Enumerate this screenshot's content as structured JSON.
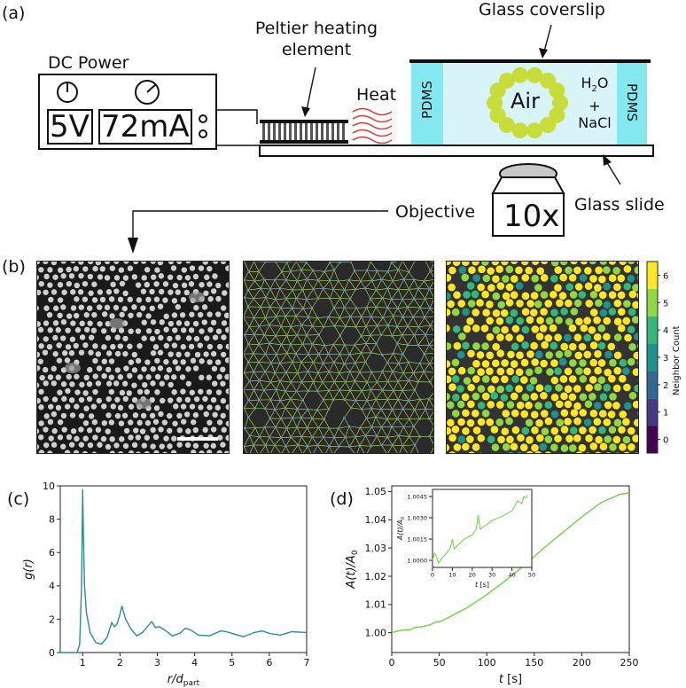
{
  "panel_labels": [
    "(a)",
    "(b)",
    "(c)",
    "(d)"
  ],
  "setup": {
    "power_title": "DC Power",
    "voltage": "5V",
    "current": "72mA",
    "peltier_label_line1": "Peltier heating",
    "peltier_label_line2": "element",
    "heat_label": "Heat",
    "coverslip_label": "Glass coverslip",
    "pdms_label": "PDMS",
    "air_label": "Air",
    "solution_line1": "H",
    "solution_sub": "2",
    "solution_line1_end": "O",
    "solution_line2": "+",
    "solution_line3": "NaCl",
    "objective_label": "Objective",
    "magnification": "10x",
    "glass_slide_label": "Glass slide",
    "colors": {
      "pdms": "#84e8f0",
      "water": "#d8f4f8",
      "particle": "#c8dc3a",
      "heat": "#d04040"
    }
  },
  "colorbar": {
    "label": "Neighbor Count",
    "ticks": [
      "0",
      "1",
      "2",
      "3",
      "4",
      "5",
      "6"
    ],
    "colors": [
      "#440154",
      "#443983",
      "#31688e",
      "#21918c",
      "#35b779",
      "#90d743",
      "#fde725"
    ]
  },
  "chart_data": [
    {
      "type": "line",
      "panel": "(c)",
      "xlabel": "r/d_part",
      "ylabel": "g(r)",
      "xlim": [
        0.4,
        7
      ],
      "ylim": [
        0,
        10
      ],
      "xticks": [
        "1",
        "2",
        "3",
        "4",
        "5",
        "6",
        "7"
      ],
      "yticks": [
        "0",
        "2",
        "4",
        "6",
        "8",
        "10"
      ],
      "color": "#2a8f8c",
      "x": [
        0.4,
        0.85,
        0.92,
        0.97,
        1.0,
        1.02,
        1.05,
        1.1,
        1.2,
        1.35,
        1.5,
        1.65,
        1.78,
        1.85,
        1.92,
        2.0,
        2.05,
        2.15,
        2.3,
        2.45,
        2.6,
        2.75,
        2.85,
        2.95,
        3.05,
        3.2,
        3.4,
        3.6,
        3.75,
        3.9,
        4.1,
        4.4,
        4.7,
        4.85,
        5.0,
        5.3,
        5.6,
        5.8,
        6.0,
        6.3,
        6.6,
        7.0
      ],
      "y": [
        0.0,
        0.0,
        0.5,
        4.0,
        9.8,
        7.0,
        4.0,
        2.4,
        1.2,
        0.6,
        0.5,
        0.9,
        1.8,
        1.55,
        1.7,
        2.3,
        2.8,
        2.0,
        1.4,
        1.0,
        1.2,
        1.6,
        1.85,
        1.5,
        1.55,
        1.35,
        1.0,
        1.15,
        1.45,
        1.35,
        1.05,
        1.0,
        1.3,
        1.25,
        1.15,
        0.95,
        1.2,
        1.3,
        1.15,
        1.05,
        1.25,
        1.2
      ]
    },
    {
      "type": "line",
      "panel": "(d)",
      "xlabel": "t [s]",
      "ylabel": "A(t)/A_0",
      "xlim": [
        0,
        250
      ],
      "ylim": [
        0.993,
        1.052
      ],
      "xticks": [
        "0",
        "50",
        "100",
        "150",
        "200",
        "250"
      ],
      "yticks": [
        "1.00",
        "1.01",
        "1.02",
        "1.03",
        "1.04",
        "1.05"
      ],
      "color": "#6fd04a",
      "x": [
        0,
        5,
        10,
        20,
        25,
        30,
        40,
        48,
        50,
        60,
        80,
        100,
        120,
        140,
        160,
        180,
        200,
        220,
        240,
        250
      ],
      "y": [
        1.0,
        1.0005,
        1.0008,
        1.0012,
        1.002,
        1.002,
        1.0028,
        1.004,
        1.0038,
        1.0055,
        1.009,
        1.0135,
        1.0185,
        1.024,
        1.03,
        1.0355,
        1.041,
        1.046,
        1.049,
        1.0495
      ]
    },
    {
      "type": "line",
      "panel": "(d) inset",
      "xlabel": "t [s]",
      "ylabel": "A(t)/A_0",
      "xlim": [
        0,
        50
      ],
      "ylim": [
        0.9995,
        1.005
      ],
      "xticks": [
        "0",
        "10",
        "20",
        "30",
        "40",
        "50"
      ],
      "yticks": [
        "1.0000",
        "1.0015",
        "1.0030",
        "1.0045"
      ],
      "color": "#6fd04a",
      "x": [
        0,
        1,
        2,
        3,
        5,
        7,
        9,
        10,
        11,
        13,
        16,
        20,
        22,
        23,
        24,
        26,
        30,
        35,
        40,
        43,
        45,
        46,
        47,
        48
      ],
      "y": [
        1.0,
        1.0005,
        1.0003,
        0.9998,
        1.0002,
        1.0005,
        1.0009,
        1.0015,
        1.0008,
        1.0011,
        1.0015,
        1.0018,
        1.0022,
        1.0032,
        1.0022,
        1.0024,
        1.0028,
        1.0031,
        1.0035,
        1.0042,
        1.004,
        1.0045,
        1.0044,
        1.0046
      ]
    }
  ]
}
